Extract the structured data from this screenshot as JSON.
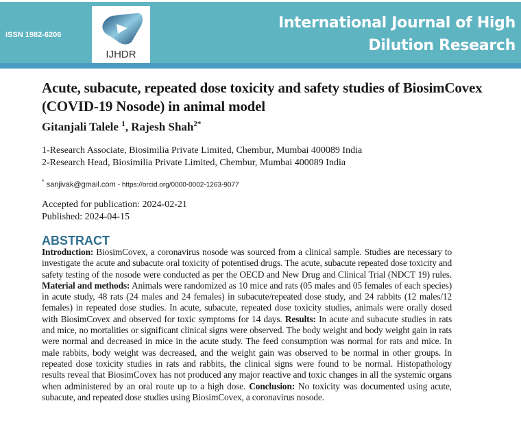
{
  "header": {
    "issn": "ISSN 1982-6206",
    "logo_text": "IJHDR",
    "journal_line1": "International Journal of High",
    "journal_line2": "Dilution Research",
    "band_color": "#5fb4c1",
    "strip_color": "#4a9cc0"
  },
  "article": {
    "title": "Acute, subacute, repeated dose toxicity and safety studies of BiosimCovex (COVID-19 Nosode) in animal model",
    "authors": [
      {
        "name": "Gitanjali Talele",
        "sup": "1"
      },
      {
        "name": "Rajesh Shah",
        "sup": "2*"
      }
    ],
    "affiliations": [
      "1-Research Associate, Biosimilia Private Limited, Chembur, Mumbai 400089 India",
      "2-Research Head, Biosimilia Private Limited, Chembur, Mumbai 400089 India"
    ],
    "contact_star": "*",
    "email": "sanjivak@gmail.com",
    "orcid": "- https://orcid.org/0000-0002-1263-9077",
    "accepted": "Accepted for publication: 2024-02-21",
    "published": "Published: 2024-04-15"
  },
  "abstract": {
    "heading": "ABSTRACT",
    "heading_color": "#2e6f8f",
    "sections": [
      {
        "label": "Introduction:",
        "text": " BiosimCovex, a coronavirus nosode was sourced from a clinical sample. Studies are necessary to investigate the acute and subacute oral toxicity of potentised drugs. The acute, subacute repeated dose toxicity and safety testing of the nosode were conducted as per the OECD and New Drug and Clinical Trial (NDCT 19) rules. "
      },
      {
        "label": "Material and methods:",
        "text": " Animals were randomized as 10 mice and rats (05 males and 05 females of each species) in acute study, 48 rats (24 males and 24 females) in subacute/repeated dose study, and 24 rabbits (12 males/12 females) in repeated dose studies. In acute, subacute, repeated dose toxicity studies, animals were orally dosed with BiosimCovex and observed for toxic symptoms for 14 days. "
      },
      {
        "label": "Results:",
        "text": " In acute and subacute studies in rats and mice, no mortalities or significant clinical signs were observed. The body weight and body weight gain in rats were normal and decreased in mice in the acute study. The feed consumption was normal for rats and mice. In male rabbits, body weight was decreased, and the weight gain was observed to be normal in other groups. In repeated dose toxicity studies in rats and rabbits, the clinical signs were found to be normal. Histopathology results reveal that BiosimCovex has not produced any major reactive and toxic changes in all the systemic organs when administered by an oral route up to a high dose. "
      },
      {
        "label": "Conclusion:",
        "text": " No toxicity was documented using acute, subacute, and repeated dose studies using BiosimCovex, a coronavirus nosode."
      }
    ]
  }
}
